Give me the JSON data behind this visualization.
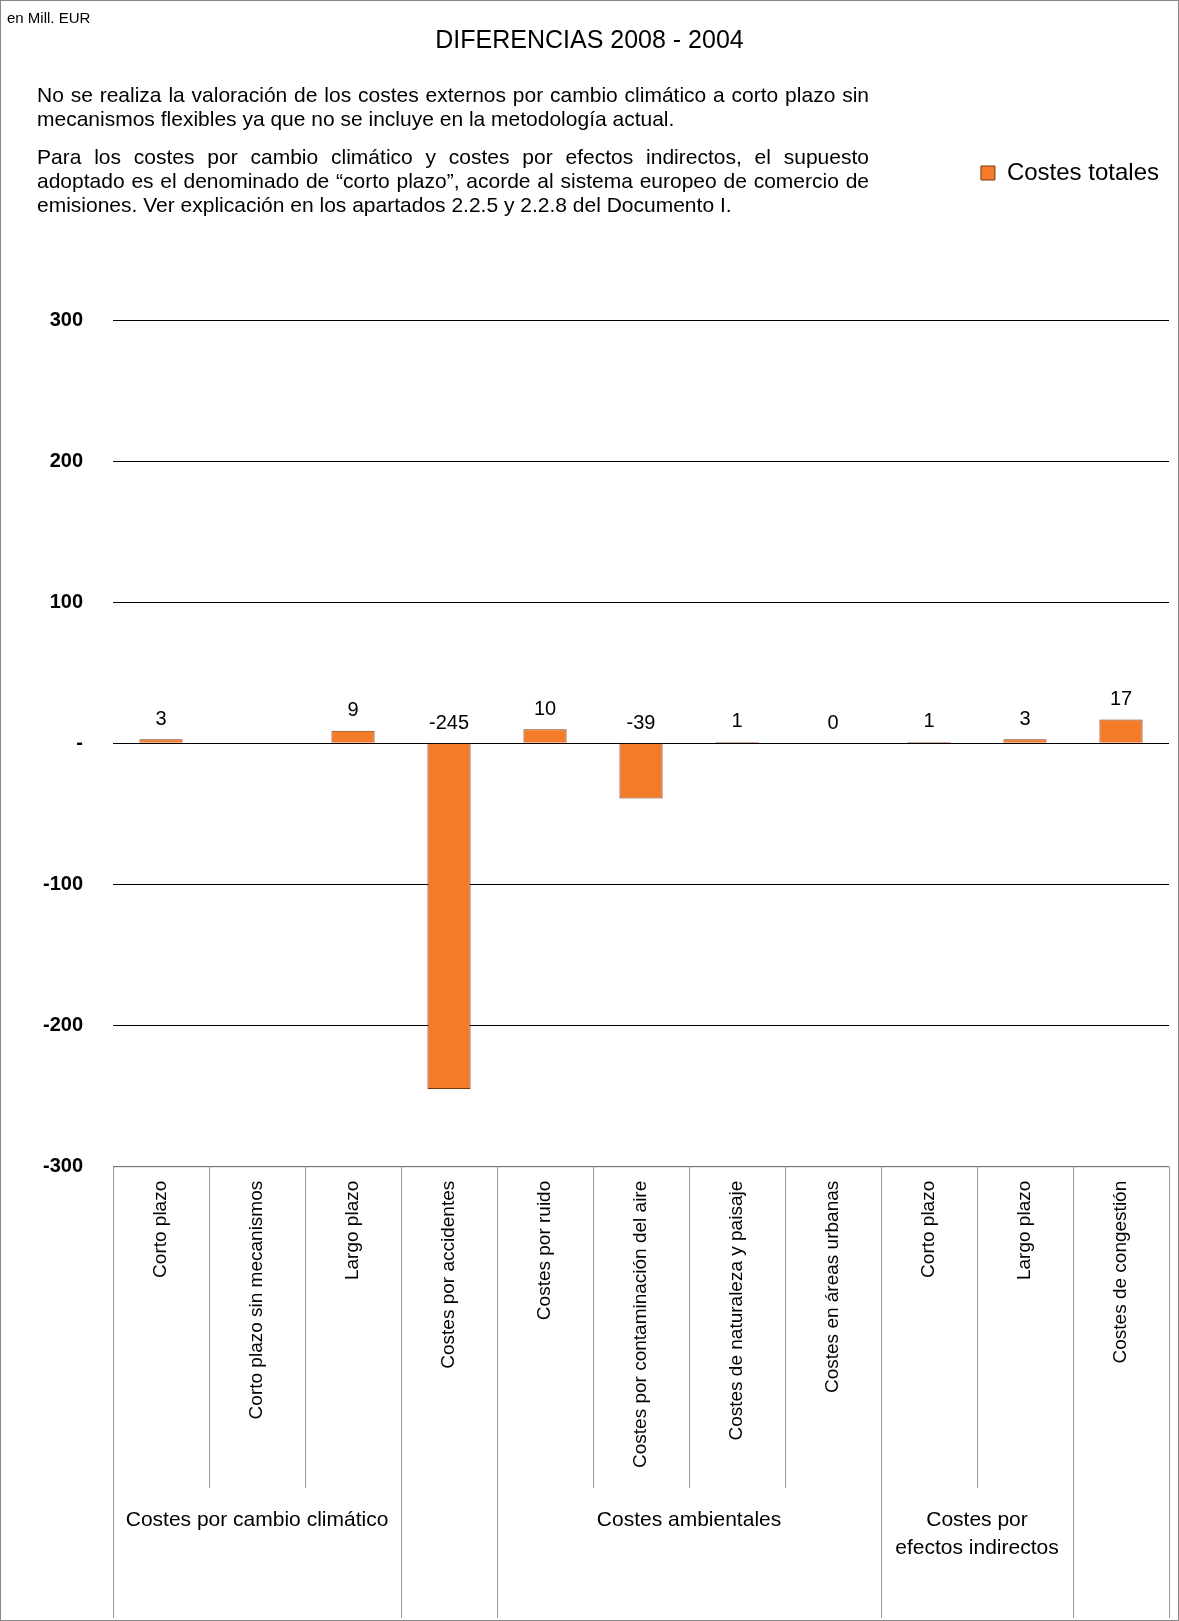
{
  "chart_data": {
    "type": "bar",
    "title": "DIFERENCIAS 2008 - 2004",
    "categories": [
      "Corto plazo",
      "Corto plazo sin mecanismos",
      "Largo plazo",
      "Costes por accidentes",
      "Costes por ruido",
      "Costes por contaminación del aire",
      "Costes de naturaleza y paisaje",
      "Costes en áreas urbanas",
      "Corto plazo",
      "Largo plazo",
      "Costes de congestión"
    ],
    "series": [
      {
        "name": "Costes totales",
        "color": "#f47b2a",
        "values": [
          3,
          null,
          9,
          -245,
          10,
          -39,
          1,
          0,
          1,
          3,
          17
        ]
      }
    ],
    "ylim": [
      -300,
      300
    ],
    "yticks": [
      -300,
      -200,
      -100,
      {
        "value": 0,
        "label": "-"
      },
      100,
      200,
      300
    ],
    "grid": "y",
    "legend": "top right",
    "data_labels": true,
    "annotations": [
      "en Mill. EUR",
      "No se realiza la valoración de los costes externos por cambio climático a corto plazo sin mecanismos flexibles ya que no se incluye en la metodología actual.",
      "Para los costes por cambio climático y costes por efectos indirectos, el supuesto adoptado es el denominado de “corto plazo”, acorde al sistema europeo de comercio de emisiones. Ver explicación en los apartados 2.2.5 y 2.2.8 del Documento I.",
      "Costes por cambio climático",
      "Costes ambientales",
      "Costes por efectos indirectos"
    ]
  }
}
